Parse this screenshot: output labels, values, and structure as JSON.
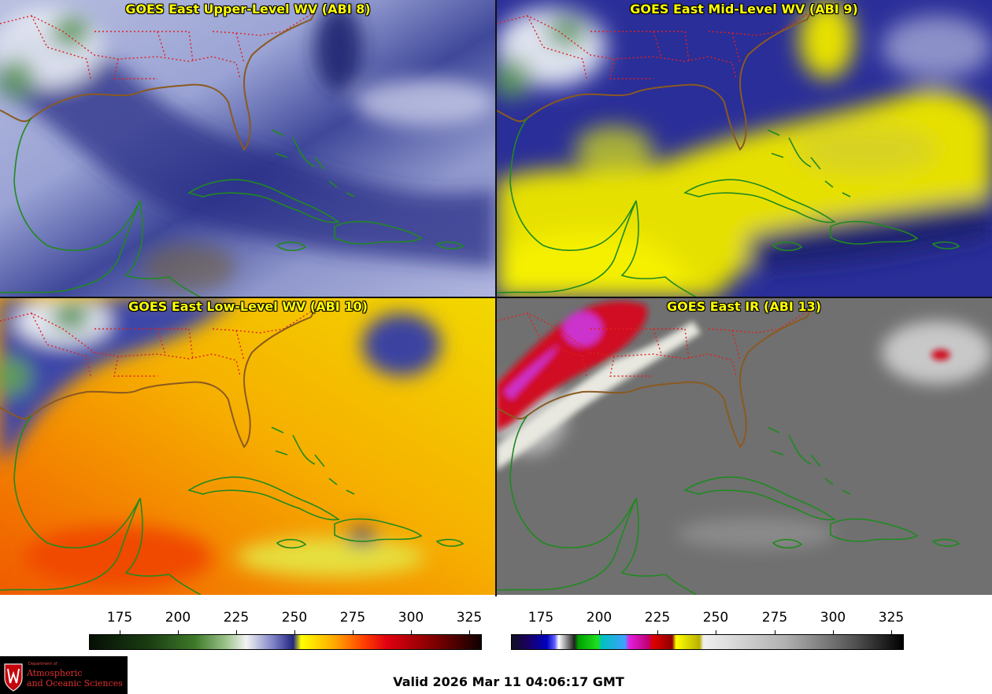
{
  "panels": {
    "upper": {
      "title": "GOES East Upper-Level WV (ABI 8)"
    },
    "mid": {
      "title": "GOES East Mid-Level WV (ABI 9)"
    },
    "low": {
      "title": "GOES East Low-Level WV (ABI 10)"
    },
    "ir": {
      "title": "GOES East IR (ABI 13)"
    }
  },
  "colorbars": {
    "wv": {
      "ticks": [
        "175",
        "200",
        "225",
        "250",
        "275",
        "300",
        "325"
      ]
    },
    "ir": {
      "ticks": [
        "175",
        "200",
        "225",
        "250",
        "275",
        "300",
        "325"
      ]
    }
  },
  "valid_time": "Valid 2026 Mar 11 04:06:17 GMT",
  "logo": {
    "small": "Department of",
    "line1": "Atmospheric",
    "line2": "and Oceanic Sciences"
  },
  "colors": {
    "title_text": "#ffff00",
    "coastline": "#1f8a1f",
    "state_borders": "#e02020",
    "border_brown": "#8a5a20"
  }
}
